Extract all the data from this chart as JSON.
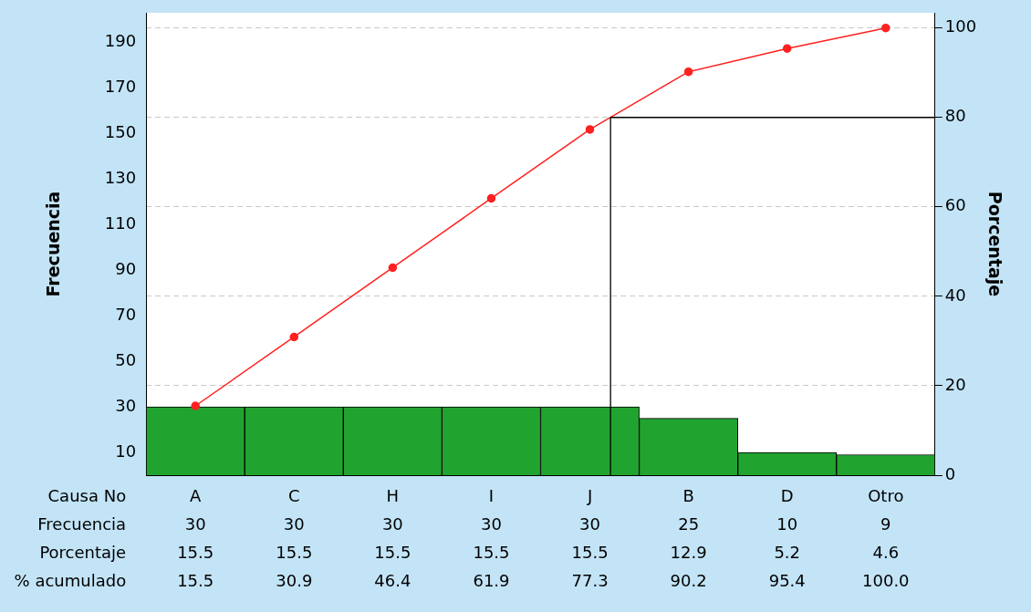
{
  "chart_data": {
    "type": "bar",
    "xlabel": "Causa No",
    "ylabel": "Frecuencia",
    "y2label": "Porcentaje",
    "categories": [
      "A",
      "C",
      "H",
      "I",
      "J",
      "B",
      "D",
      "Otro"
    ],
    "series": [
      {
        "name": "Frecuencia",
        "color": "#21a330",
        "values": [
          30,
          30,
          30,
          30,
          30,
          25,
          10,
          9
        ]
      },
      {
        "type": "line",
        "axis": "y2",
        "color": "#ff2020",
        "values": [
          15.5,
          30.9,
          46.4,
          61.9,
          77.3,
          90.2,
          95.4,
          100
        ],
        "value_labels": [
          "15.5",
          "30.9",
          "46.4",
          "61.9",
          "77.3",
          "90.2",
          "95.4",
          "100.0"
        ]
      }
    ],
    "annotations": [
      "Porcentaje",
      "15.5",
      "15.5",
      "15.5",
      "15.5",
      "15.5",
      "12.9",
      "5.2",
      "4.6",
      "% acumulado"
    ],
    "ylim": [
      0,
      203
    ],
    "yticks": [
      10,
      30,
      50,
      70,
      90,
      110,
      130,
      150,
      170,
      190
    ],
    "y2lim": [
      0,
      103.4
    ],
    "y2ticks": [
      0,
      20,
      40,
      60,
      80,
      100
    ],
    "ref_lines": [
      {
        "axis": "y2",
        "value": 80,
        "color": "#000000"
      }
    ],
    "data_labels": true,
    "grid": "y2",
    "legend": false,
    "marker": "circle",
    "line_style": "solid"
  }
}
